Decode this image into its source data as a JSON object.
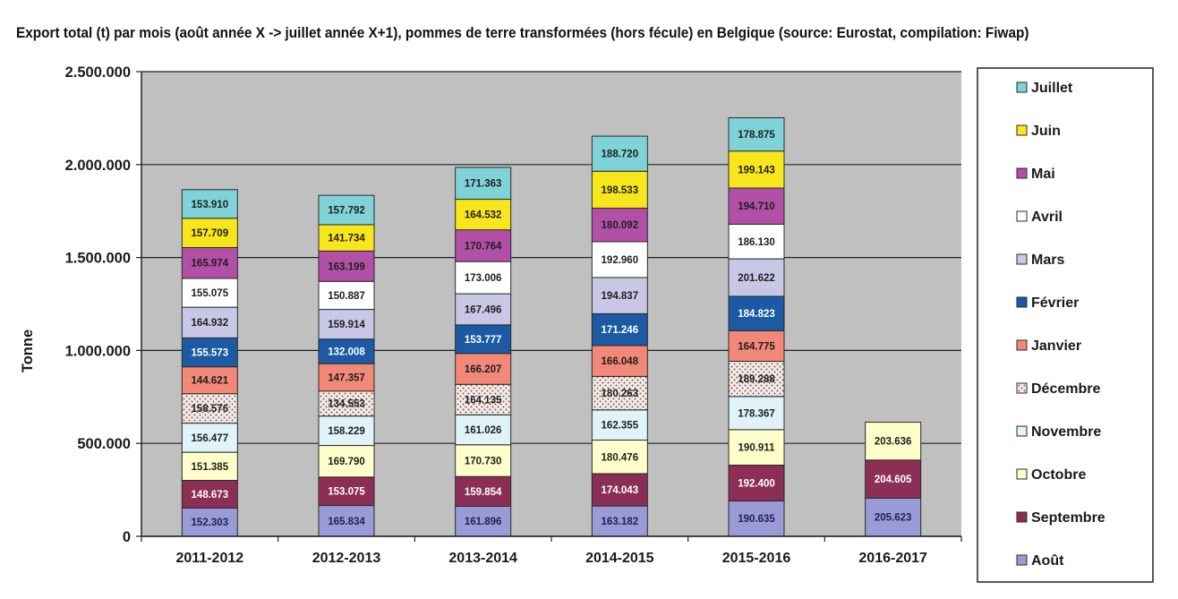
{
  "chart_data": {
    "type": "bar",
    "stacked": true,
    "title": "Export total (t) par mois (août année X -> juillet année X+1), pommes  de terre transformées (hors fécule) en Belgique (source: Eurostat, compilation: Fiwap)",
    "xlabel": "",
    "ylabel": "Tonne",
    "ylim": [
      0,
      2500000
    ],
    "yticks": [
      0,
      500000,
      1000000,
      1500000,
      2000000,
      2500000
    ],
    "ytick_labels": [
      "0",
      "500.000",
      "1.000.000",
      "1.500.000",
      "2.000.000",
      "2.500.000"
    ],
    "grid": true,
    "legend_position": "right",
    "categories": [
      "2011-2012",
      "2012-2013",
      "2013-2014",
      "2014-2015",
      "2015-2016",
      "2016-2017"
    ],
    "series": [
      {
        "name": "Août",
        "color": "#9a9ad6",
        "text_color": "#202060",
        "values": [
          152303,
          165834,
          161896,
          163182,
          190635,
          205623
        ],
        "labels": [
          "152.303",
          "165.834",
          "161.896",
          "163.182",
          "190.635",
          "205.623"
        ]
      },
      {
        "name": "Septembre",
        "color": "#8c2f56",
        "text_color": "#ffffff",
        "values": [
          148673,
          153075,
          159854,
          174043,
          192400,
          204605
        ],
        "labels": [
          "148.673",
          "153.075",
          "159.854",
          "174.043",
          "192.400",
          "204.605"
        ]
      },
      {
        "name": "Octobre",
        "color": "#ffffcc",
        "text_color": "#202020",
        "values": [
          151385,
          169790,
          170730,
          180476,
          190911,
          203636
        ],
        "labels": [
          "151.385",
          "169.790",
          "170.730",
          "180.476",
          "190.911",
          "203.636"
        ]
      },
      {
        "name": "Novembre",
        "color": "#dff3f8",
        "text_color": "#202020",
        "values": [
          156477,
          158229,
          161026,
          162355,
          178367,
          null
        ],
        "labels": [
          "156.477",
          "158.229",
          "161.026",
          "162.355",
          "178.367",
          ""
        ]
      },
      {
        "name": "Décembre",
        "color": "#f4ece8",
        "text_color": "#202020",
        "pattern": "dots",
        "values": [
          158576,
          134553,
          164135,
          180263,
          189288,
          null
        ],
        "labels": [
          "158.576",
          "134.553",
          "164.135",
          "180.263",
          "189.288",
          ""
        ]
      },
      {
        "name": "Janvier",
        "color": "#f28878",
        "text_color": "#202020",
        "values": [
          144621,
          147357,
          166207,
          166048,
          164775,
          null
        ],
        "labels": [
          "144.621",
          "147.357",
          "166.207",
          "166.048",
          "164.775",
          ""
        ]
      },
      {
        "name": "Février",
        "color": "#1c5aa4",
        "text_color": "#ffffff",
        "values": [
          155573,
          132008,
          153777,
          171246,
          184823,
          null
        ],
        "labels": [
          "155.573",
          "132.008",
          "153.777",
          "171.246",
          "184.823",
          ""
        ]
      },
      {
        "name": "Mars",
        "color": "#c8c8e6",
        "text_color": "#202020",
        "values": [
          164932,
          159914,
          167496,
          194837,
          201622,
          null
        ],
        "labels": [
          "164.932",
          "159.914",
          "167.496",
          "194.837",
          "201.622",
          ""
        ]
      },
      {
        "name": "Avril",
        "color": "#ffffff",
        "text_color": "#202020",
        "values": [
          155075,
          150887,
          173006,
          192960,
          186130,
          null
        ],
        "labels": [
          "155.075",
          "150.887",
          "173.006",
          "192.960",
          "186.130",
          ""
        ]
      },
      {
        "name": "Mai",
        "color": "#b24fa6",
        "text_color": "#202020",
        "values": [
          165974,
          163199,
          170764,
          180092,
          194710,
          null
        ],
        "labels": [
          "165.974",
          "163.199",
          "170.764",
          "180.092",
          "194.710",
          ""
        ]
      },
      {
        "name": "Juin",
        "color": "#f8e61c",
        "text_color": "#202020",
        "values": [
          157709,
          141734,
          164532,
          198533,
          199143,
          null
        ],
        "labels": [
          "157.709",
          "141.734",
          "164.532",
          "198.533",
          "199.143",
          ""
        ]
      },
      {
        "name": "Juillet",
        "color": "#7fd3d8",
        "text_color": "#202020",
        "values": [
          153910,
          157792,
          171363,
          188720,
          178875,
          null
        ],
        "labels": [
          "153.910",
          "157.792",
          "171.363",
          "188.720",
          "178.875",
          ""
        ]
      }
    ]
  }
}
